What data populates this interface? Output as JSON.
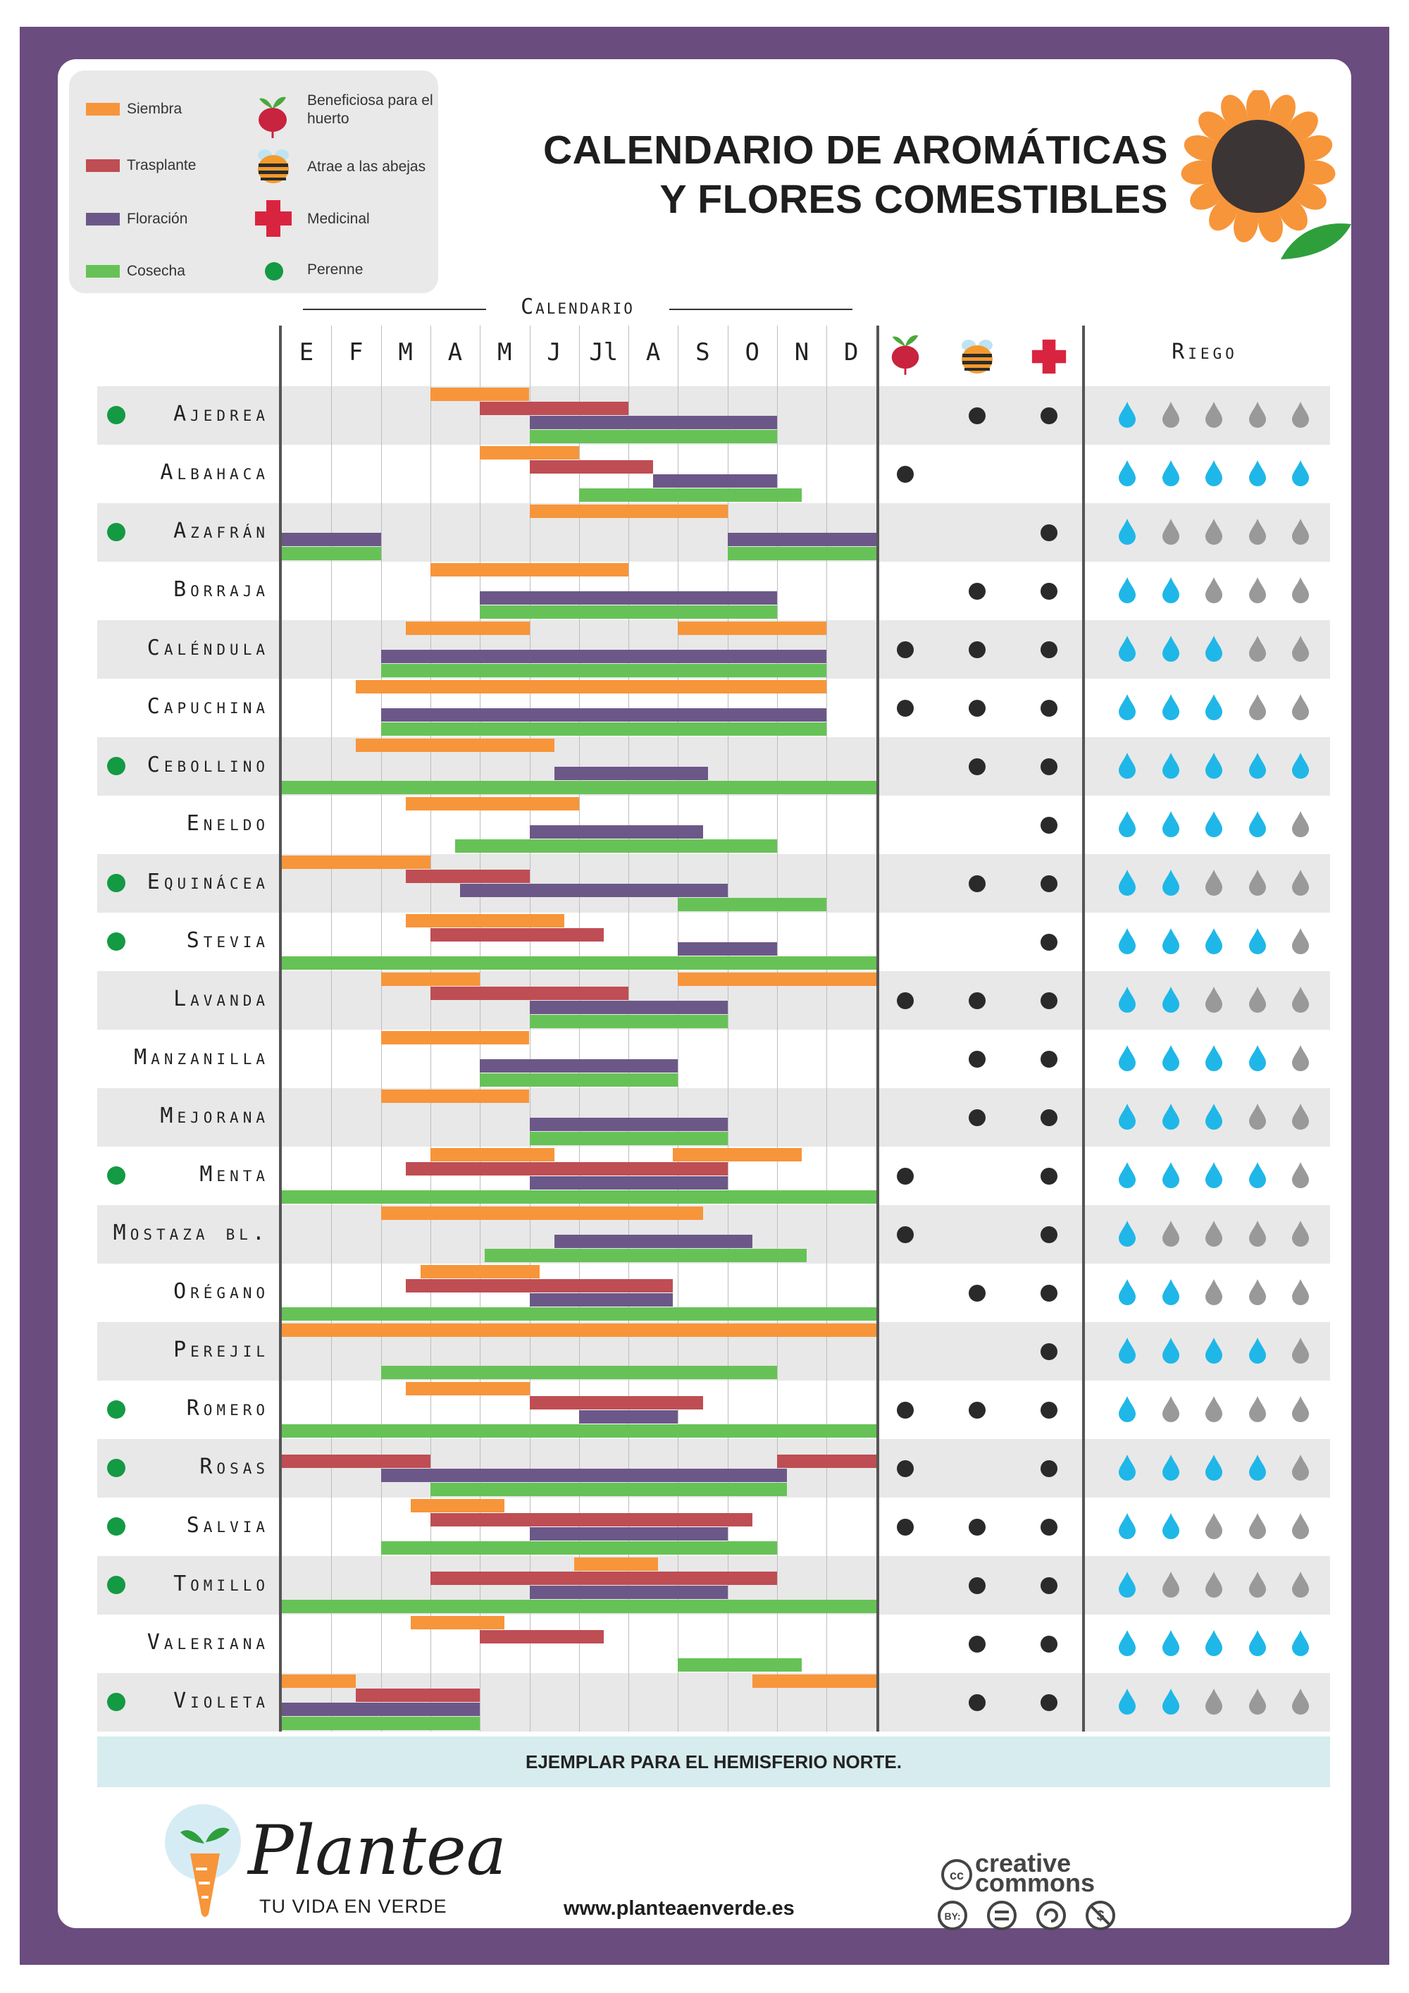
{
  "colors": {
    "frame": "#6a4c7e",
    "siembra": "#f7953a",
    "trasplante": "#bf4d54",
    "floracion": "#6c5888",
    "cosecha": "#66c256",
    "perenne": "#139a43",
    "drop_blue": "#1fb7e8",
    "drop_grey": "#999999",
    "medicinal": "#d9243f",
    "footer_band": "#d7ecee"
  },
  "legend": {
    "siembra": "Siembra",
    "trasplante": "Trasplante",
    "floracion": "Floración",
    "cosecha": "Cosecha",
    "beneficiosa": "Beneficiosa para el huerto",
    "abejas": "Atrae a las abejas",
    "medicinal": "Medicinal",
    "perenne": "Perenne",
    "icons": [
      "beet-icon",
      "bee-icon",
      "red-cross-icon",
      "green-dot-icon"
    ]
  },
  "title_line1": "CALENDARIO DE AROMÁTICAS",
  "title_line2": "Y FLORES COMESTIBLES",
  "calendar_label": "Calendario",
  "riego_label": "Riego",
  "footer_note": "EJEMPLAR PARA EL HEMISFERIO NORTE.",
  "brand": "Plantea",
  "tagline": "TU VIDA EN VERDE",
  "website": "www.planteaenverde.es",
  "license_text": "creative commons",
  "license_icons": [
    "cc-icon",
    "by-icon",
    "equals-icon",
    "sa-icon",
    "nc-icon"
  ],
  "chart_data": {
    "type": "table",
    "x": [
      "E",
      "F",
      "M",
      "A",
      "M",
      "J",
      "Jl",
      "A",
      "S",
      "O",
      "N",
      "D"
    ],
    "x_unit": "month (0 = start of January, 12 = end of December)",
    "series_names": [
      "Siembra",
      "Trasplante",
      "Floración",
      "Cosecha"
    ],
    "columns": [
      "Beneficiosa para el huerto",
      "Atrae a las abejas",
      "Medicinal",
      "Riego (1-5)"
    ],
    "rows": [
      {
        "name": "Ajedrea",
        "perenne": true,
        "beneficiosa": false,
        "abejas": true,
        "medicinal": true,
        "riego": 1,
        "siembra": [
          [
            3,
            5
          ]
        ],
        "trasplante": [
          [
            4,
            7
          ]
        ],
        "floracion": [
          [
            5,
            10
          ]
        ],
        "cosecha": [
          [
            5,
            10
          ]
        ]
      },
      {
        "name": "Albahaca",
        "perenne": false,
        "beneficiosa": true,
        "abejas": false,
        "medicinal": false,
        "riego": 5,
        "siembra": [
          [
            4,
            6
          ]
        ],
        "trasplante": [
          [
            5,
            7.5
          ]
        ],
        "floracion": [
          [
            7.5,
            10
          ]
        ],
        "cosecha": [
          [
            6,
            10.5
          ]
        ]
      },
      {
        "name": "Azafrán",
        "perenne": true,
        "beneficiosa": false,
        "abejas": false,
        "medicinal": true,
        "riego": 1,
        "siembra": [
          [
            5,
            9
          ]
        ],
        "trasplante": [],
        "floracion": [
          [
            0,
            2
          ],
          [
            9,
            12
          ]
        ],
        "cosecha": [
          [
            0,
            2
          ],
          [
            9,
            12
          ]
        ]
      },
      {
        "name": "Borraja",
        "perenne": false,
        "beneficiosa": false,
        "abejas": true,
        "medicinal": true,
        "riego": 2,
        "siembra": [
          [
            3,
            7
          ]
        ],
        "trasplante": [],
        "floracion": [
          [
            4,
            10
          ]
        ],
        "cosecha": [
          [
            4,
            10
          ]
        ]
      },
      {
        "name": "Caléndula",
        "perenne": false,
        "beneficiosa": true,
        "abejas": true,
        "medicinal": true,
        "riego": 3,
        "siembra": [
          [
            2.5,
            5
          ],
          [
            8,
            11
          ]
        ],
        "trasplante": [],
        "floracion": [
          [
            2,
            11
          ]
        ],
        "cosecha": [
          [
            2,
            11
          ]
        ]
      },
      {
        "name": "Capuchina",
        "perenne": false,
        "beneficiosa": true,
        "abejas": true,
        "medicinal": true,
        "riego": 3,
        "siembra": [
          [
            1.5,
            11
          ]
        ],
        "trasplante": [],
        "floracion": [
          [
            2,
            11
          ]
        ],
        "cosecha": [
          [
            2,
            11
          ]
        ]
      },
      {
        "name": "Cebollino",
        "perenne": true,
        "beneficiosa": false,
        "abejas": true,
        "medicinal": true,
        "riego": 5,
        "siembra": [
          [
            1.5,
            5.5
          ]
        ],
        "trasplante": [],
        "floracion": [
          [
            5.5,
            8.6
          ]
        ],
        "cosecha": [
          [
            0,
            12
          ]
        ]
      },
      {
        "name": "Eneldo",
        "perenne": false,
        "beneficiosa": false,
        "abejas": false,
        "medicinal": true,
        "riego": 4,
        "siembra": [
          [
            2.5,
            6
          ]
        ],
        "trasplante": [],
        "floracion": [
          [
            5,
            8.5
          ]
        ],
        "cosecha": [
          [
            3.5,
            10
          ]
        ]
      },
      {
        "name": "Equinácea",
        "perenne": true,
        "beneficiosa": false,
        "abejas": true,
        "medicinal": true,
        "riego": 2,
        "siembra": [
          [
            0,
            3
          ]
        ],
        "trasplante": [
          [
            2.5,
            5
          ]
        ],
        "floracion": [
          [
            3.6,
            9
          ]
        ],
        "cosecha": [
          [
            8,
            11
          ]
        ]
      },
      {
        "name": "Stevia",
        "perenne": true,
        "beneficiosa": false,
        "abejas": false,
        "medicinal": true,
        "riego": 4,
        "siembra": [
          [
            2.5,
            5.7
          ]
        ],
        "trasplante": [
          [
            3,
            6.5
          ]
        ],
        "floracion": [
          [
            8,
            10
          ]
        ],
        "cosecha": [
          [
            0,
            12
          ]
        ]
      },
      {
        "name": "Lavanda",
        "perenne": false,
        "beneficiosa": true,
        "abejas": true,
        "medicinal": true,
        "riego": 2,
        "siembra": [
          [
            2,
            4
          ],
          [
            8,
            12
          ]
        ],
        "trasplante": [
          [
            3,
            7
          ]
        ],
        "floracion": [
          [
            5,
            9
          ]
        ],
        "cosecha": [
          [
            5,
            9
          ]
        ]
      },
      {
        "name": "Manzanilla",
        "perenne": false,
        "beneficiosa": false,
        "abejas": true,
        "medicinal": true,
        "riego": 4,
        "siembra": [
          [
            2,
            5
          ]
        ],
        "trasplante": [],
        "floracion": [
          [
            4,
            8
          ]
        ],
        "cosecha": [
          [
            4,
            8
          ]
        ]
      },
      {
        "name": "Mejorana",
        "perenne": false,
        "beneficiosa": false,
        "abejas": true,
        "medicinal": true,
        "riego": 3,
        "siembra": [
          [
            2,
            5
          ]
        ],
        "trasplante": [],
        "floracion": [
          [
            5,
            9
          ]
        ],
        "cosecha": [
          [
            5,
            9
          ]
        ]
      },
      {
        "name": "Menta",
        "perenne": true,
        "beneficiosa": true,
        "abejas": false,
        "medicinal": true,
        "riego": 4,
        "siembra": [
          [
            3,
            5.5
          ],
          [
            7.9,
            10.5
          ]
        ],
        "trasplante": [
          [
            2.5,
            9
          ]
        ],
        "floracion": [
          [
            5,
            9
          ]
        ],
        "cosecha": [
          [
            0,
            12
          ]
        ]
      },
      {
        "name": "Mostaza bl.",
        "perenne": false,
        "beneficiosa": true,
        "abejas": false,
        "medicinal": true,
        "riego": 1,
        "siembra": [
          [
            2,
            8.5
          ]
        ],
        "trasplante": [],
        "floracion": [
          [
            5.5,
            9.5
          ]
        ],
        "cosecha": [
          [
            4.1,
            10.6
          ]
        ]
      },
      {
        "name": "Orégano",
        "perenne": false,
        "beneficiosa": false,
        "abejas": true,
        "medicinal": true,
        "riego": 2,
        "siembra": [
          [
            2.8,
            5.2
          ]
        ],
        "trasplante": [
          [
            2.5,
            7.9
          ]
        ],
        "floracion": [
          [
            5,
            7.9
          ]
        ],
        "cosecha": [
          [
            0,
            12
          ]
        ]
      },
      {
        "name": "Perejil",
        "perenne": false,
        "beneficiosa": false,
        "abejas": false,
        "medicinal": true,
        "riego": 4,
        "siembra": [
          [
            0,
            12
          ]
        ],
        "trasplante": [],
        "floracion": [],
        "cosecha": [
          [
            2,
            10
          ]
        ]
      },
      {
        "name": "Romero",
        "perenne": true,
        "beneficiosa": true,
        "abejas": true,
        "medicinal": true,
        "riego": 1,
        "siembra": [
          [
            2.5,
            5
          ]
        ],
        "trasplante": [
          [
            5,
            8.5
          ]
        ],
        "floracion": [
          [
            6,
            8
          ]
        ],
        "cosecha": [
          [
            0,
            12
          ]
        ]
      },
      {
        "name": "Rosas",
        "perenne": true,
        "beneficiosa": true,
        "abejas": false,
        "medicinal": true,
        "riego": 4,
        "siembra": [],
        "trasplante": [
          [
            0,
            3
          ],
          [
            10,
            12
          ]
        ],
        "floracion": [
          [
            2,
            10.2
          ]
        ],
        "cosecha": [
          [
            3,
            10.2
          ]
        ]
      },
      {
        "name": "Salvia",
        "perenne": true,
        "beneficiosa": true,
        "abejas": true,
        "medicinal": true,
        "riego": 2,
        "siembra": [
          [
            2.6,
            4.5
          ]
        ],
        "trasplante": [
          [
            3,
            9.5
          ]
        ],
        "floracion": [
          [
            5,
            9
          ]
        ],
        "cosecha": [
          [
            2,
            10
          ]
        ]
      },
      {
        "name": "Tomillo",
        "perenne": true,
        "beneficiosa": false,
        "abejas": true,
        "medicinal": true,
        "riego": 1,
        "siembra": [
          [
            5.9,
            7.6
          ]
        ],
        "trasplante": [
          [
            3,
            10
          ]
        ],
        "floracion": [
          [
            5,
            9
          ]
        ],
        "cosecha": [
          [
            0,
            12
          ]
        ]
      },
      {
        "name": "Valeriana",
        "perenne": false,
        "beneficiosa": false,
        "abejas": true,
        "medicinal": true,
        "riego": 5,
        "siembra": [
          [
            2.6,
            4.5
          ]
        ],
        "trasplante": [
          [
            4,
            6.5
          ]
        ],
        "floracion": [],
        "cosecha": [
          [
            8,
            10.5
          ]
        ]
      },
      {
        "name": "Violeta",
        "perenne": true,
        "beneficiosa": false,
        "abejas": true,
        "medicinal": true,
        "riego": 2,
        "siembra": [
          [
            0,
            1.5
          ],
          [
            9.5,
            12
          ]
        ],
        "trasplante": [
          [
            1.5,
            4
          ]
        ],
        "floracion": [
          [
            0,
            4
          ]
        ],
        "cosecha": [
          [
            0,
            4
          ]
        ]
      }
    ]
  }
}
